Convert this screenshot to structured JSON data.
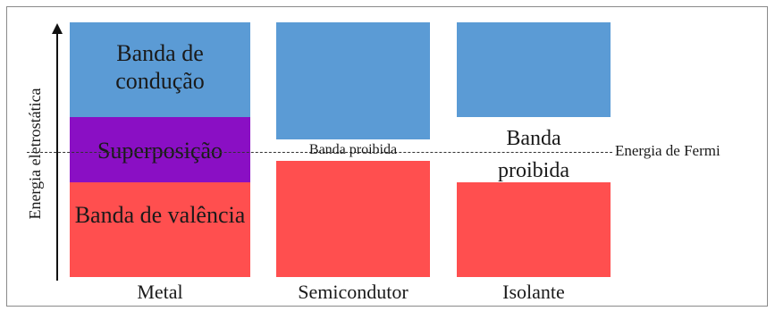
{
  "diagram": {
    "y_axis_label": "Energia eletrostática",
    "fermi_label": "Energia de Fermi",
    "categories": [
      "Metal",
      "Semicondutor",
      "Isolante"
    ],
    "metal": {
      "conduction": "Banda de condução",
      "overlap": "Superposição",
      "valence": "Banda de valência"
    },
    "semiconductor": {
      "gap_label": "Banda proibida"
    },
    "insulator": {
      "gap_label": "Banda proibida"
    },
    "colors": {
      "conduction": "#5b9bd5",
      "valence": "#ff4f4f",
      "overlap": "#8a0fc4"
    }
  }
}
